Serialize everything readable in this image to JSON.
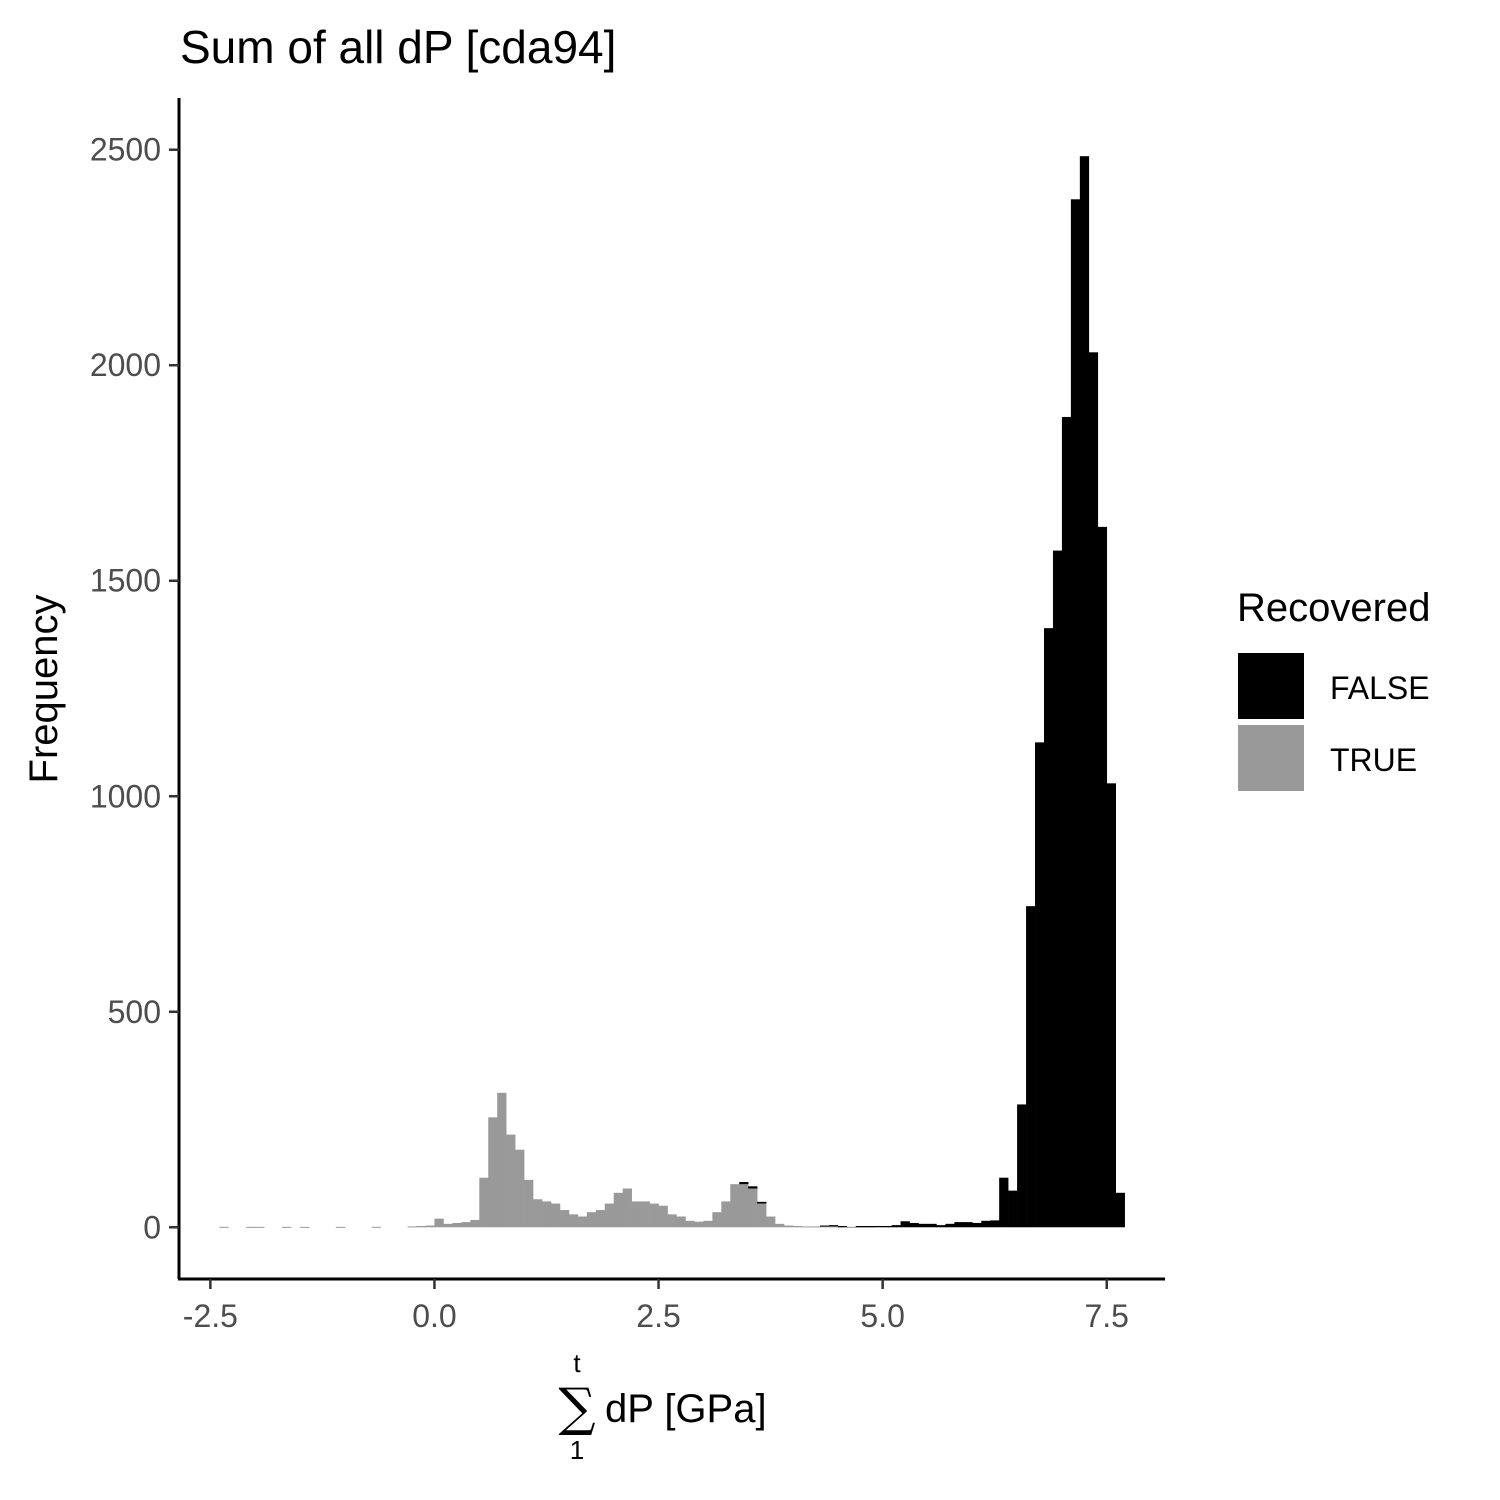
{
  "chart_data": {
    "type": "bar",
    "title": "Sum of all dP [cda94]",
    "ylabel": "Frequency",
    "xlabel": {
      "sum_upper": "t",
      "sum_lower": "1",
      "text": "dP [GPa]"
    },
    "x_ticks": [
      "-2.5",
      "0.0",
      "2.5",
      "5.0",
      "7.5"
    ],
    "x_tick_values": [
      -2.5,
      0.0,
      2.5,
      5.0,
      7.5
    ],
    "y_ticks": [
      "0",
      "500",
      "1000",
      "1500",
      "2000",
      "2500"
    ],
    "y_tick_values": [
      0,
      500,
      1000,
      1500,
      2000,
      2500
    ],
    "xlim": [
      -2.85,
      8.15
    ],
    "ylim": [
      -120,
      2620
    ],
    "bin_width": 0.1,
    "grid": false,
    "legend": {
      "title": "Recovered",
      "placement": "right",
      "items": [
        {
          "label": "FALSE",
          "color": "#000000"
        },
        {
          "label": "TRUE",
          "color": "#999999"
        }
      ]
    },
    "series": [
      {
        "name": "TRUE",
        "color": "#999999",
        "bins": [
          [
            -2.35,
            1
          ],
          [
            -2.05,
            1
          ],
          [
            -1.95,
            1
          ],
          [
            -1.65,
            1
          ],
          [
            -1.45,
            1
          ],
          [
            -1.05,
            1
          ],
          [
            -0.65,
            1
          ],
          [
            -0.25,
            2
          ],
          [
            -0.15,
            3
          ],
          [
            -0.05,
            4
          ],
          [
            0.05,
            20
          ],
          [
            0.15,
            8
          ],
          [
            0.25,
            10
          ],
          [
            0.35,
            12
          ],
          [
            0.45,
            17
          ],
          [
            0.55,
            115
          ],
          [
            0.65,
            255
          ],
          [
            0.75,
            312
          ],
          [
            0.85,
            215
          ],
          [
            0.95,
            180
          ],
          [
            1.05,
            110
          ],
          [
            1.15,
            65
          ],
          [
            1.25,
            60
          ],
          [
            1.35,
            55
          ],
          [
            1.45,
            40
          ],
          [
            1.55,
            30
          ],
          [
            1.65,
            25
          ],
          [
            1.75,
            35
          ],
          [
            1.85,
            40
          ],
          [
            1.95,
            55
          ],
          [
            2.05,
            80
          ],
          [
            2.15,
            90
          ],
          [
            2.25,
            60
          ],
          [
            2.35,
            60
          ],
          [
            2.45,
            55
          ],
          [
            2.55,
            50
          ],
          [
            2.65,
            30
          ],
          [
            2.75,
            25
          ],
          [
            2.85,
            15
          ],
          [
            2.95,
            13
          ],
          [
            3.05,
            15
          ],
          [
            3.15,
            35
          ],
          [
            3.25,
            60
          ],
          [
            3.35,
            100
          ],
          [
            3.45,
            100
          ],
          [
            3.55,
            90
          ],
          [
            3.65,
            55
          ],
          [
            3.75,
            25
          ],
          [
            3.85,
            8
          ],
          [
            3.95,
            4
          ],
          [
            4.05,
            3
          ],
          [
            4.15,
            2
          ],
          [
            4.25,
            2
          ],
          [
            4.35,
            3
          ],
          [
            4.45,
            2
          ],
          [
            4.55,
            1
          ],
          [
            4.65,
            1
          ],
          [
            4.75,
            1
          ],
          [
            4.85,
            1
          ]
        ]
      },
      {
        "name": "FALSE",
        "color": "#000000",
        "bins": [
          [
            3.45,
            5
          ],
          [
            3.55,
            5
          ],
          [
            3.65,
            4
          ],
          [
            4.35,
            1
          ],
          [
            4.45,
            3
          ],
          [
            4.55,
            2
          ],
          [
            4.75,
            2
          ],
          [
            4.85,
            2
          ],
          [
            4.95,
            3
          ],
          [
            5.05,
            3
          ],
          [
            5.15,
            5
          ],
          [
            5.25,
            14
          ],
          [
            5.35,
            10
          ],
          [
            5.45,
            8
          ],
          [
            5.55,
            8
          ],
          [
            5.65,
            5
          ],
          [
            5.75,
            8
          ],
          [
            5.85,
            12
          ],
          [
            5.95,
            12
          ],
          [
            6.05,
            10
          ],
          [
            6.15,
            15
          ],
          [
            6.25,
            16
          ],
          [
            6.35,
            115
          ],
          [
            6.45,
            85
          ],
          [
            6.55,
            285
          ],
          [
            6.65,
            745
          ],
          [
            6.75,
            1125
          ],
          [
            6.85,
            1390
          ],
          [
            6.95,
            1570
          ],
          [
            7.05,
            1880
          ],
          [
            7.15,
            2385
          ],
          [
            7.25,
            2485
          ],
          [
            7.35,
            2030
          ],
          [
            7.45,
            1625
          ],
          [
            7.55,
            1030
          ],
          [
            7.65,
            80
          ]
        ]
      }
    ]
  }
}
